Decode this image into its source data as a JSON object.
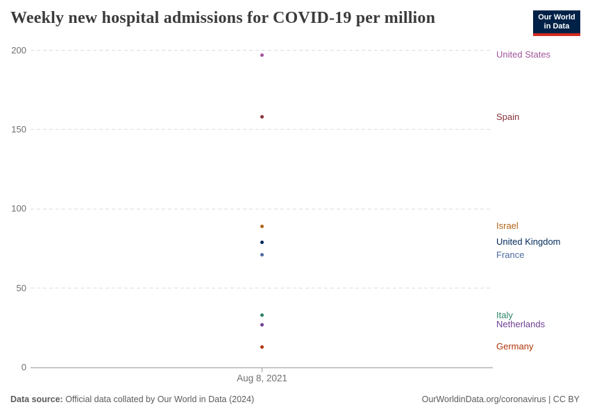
{
  "header": {
    "title": "Weekly new hospital admissions for COVID-19 per million",
    "logo": {
      "line1": "Our World",
      "line2": "in Data",
      "bg_color": "#002147",
      "accent_color": "#d42b21"
    }
  },
  "chart_data": {
    "type": "scatter",
    "title": "Weekly new hospital admissions for COVID-19 per million",
    "x_tick_label": "Aug 8, 2021",
    "xlabel": "",
    "ylabel": "",
    "ylim": [
      0,
      200
    ],
    "y_ticks": [
      0,
      50,
      100,
      150,
      200
    ],
    "grid": "dashed horizontal gridlines",
    "legend_position": "right edge labels, colored to match points",
    "series": [
      {
        "name": "United States",
        "value": 197,
        "color": "#A2559C"
      },
      {
        "name": "Spain",
        "value": 158,
        "color": "#883039"
      },
      {
        "name": "Israel",
        "value": 89,
        "color": "#B16214"
      },
      {
        "name": "United Kingdom",
        "value": 79,
        "color": "#00295B"
      },
      {
        "name": "France",
        "value": 71,
        "color": "#4C6A9C"
      },
      {
        "name": "Italy",
        "value": 33,
        "color": "#2C8465"
      },
      {
        "name": "Netherlands",
        "value": 27,
        "color": "#6D3E91"
      },
      {
        "name": "Germany",
        "value": 13,
        "color": "#B13507"
      }
    ]
  },
  "footer": {
    "source_label": "Data source:",
    "source_text": " Official data collated by Our World in Data (2024)",
    "link_text": "OurWorldinData.org/coronavirus | CC BY"
  }
}
